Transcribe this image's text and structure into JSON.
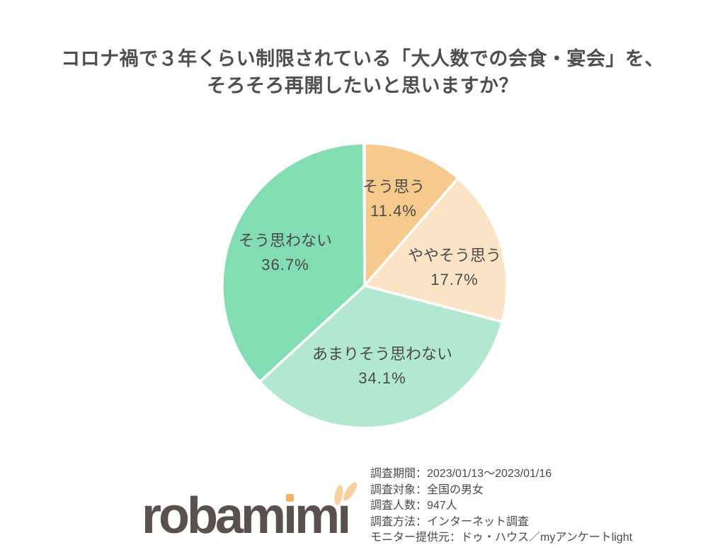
{
  "title": {
    "line1": "コロナ禍で３年くらい制限されている「大人数での会食・宴会」を、",
    "line2": "そろそろ再開したいと思いますか？",
    "color": "#4f4f4f"
  },
  "chart_data": {
    "type": "pie",
    "title": "コロナ禍で３年くらい制限されている「大人数での会食・宴会」を、そろそろ再開したいと思いますか？",
    "start_angle_deg": -90,
    "direction": "clockwise",
    "separator_color": "#ffffff",
    "label_color": "#4a4a4a",
    "slices": [
      {
        "label": "そう思う",
        "value": 11.4,
        "display": "11.4%",
        "color": "#f6c98d"
      },
      {
        "label": "ややそう思う",
        "value": 17.7,
        "display": "17.7%",
        "color": "#fbe4c6"
      },
      {
        "label": "あまりそう思わない",
        "value": 34.1,
        "display": "34.1%",
        "color": "#b2e8d0"
      },
      {
        "label": "そう思わない",
        "value": 36.7,
        "display": "36.7%",
        "color": "#82ddb3"
      }
    ]
  },
  "survey": {
    "lines": [
      "調査期間：2023/01/13～2023/01/16",
      "調査対象：全国の男女",
      "調査人数：947人",
      "調査方法：インターネット調査",
      "モニター提供元：ドゥ・ハウス／myアンケートlight"
    ]
  },
  "logo": {
    "text": "robamimi",
    "part1": "robam",
    "i1": "ı",
    "part2": "m",
    "i2": "ı",
    "text_color": "#5a514e",
    "dot_color": "#f2b366",
    "ear_color": "#f8d09c"
  }
}
